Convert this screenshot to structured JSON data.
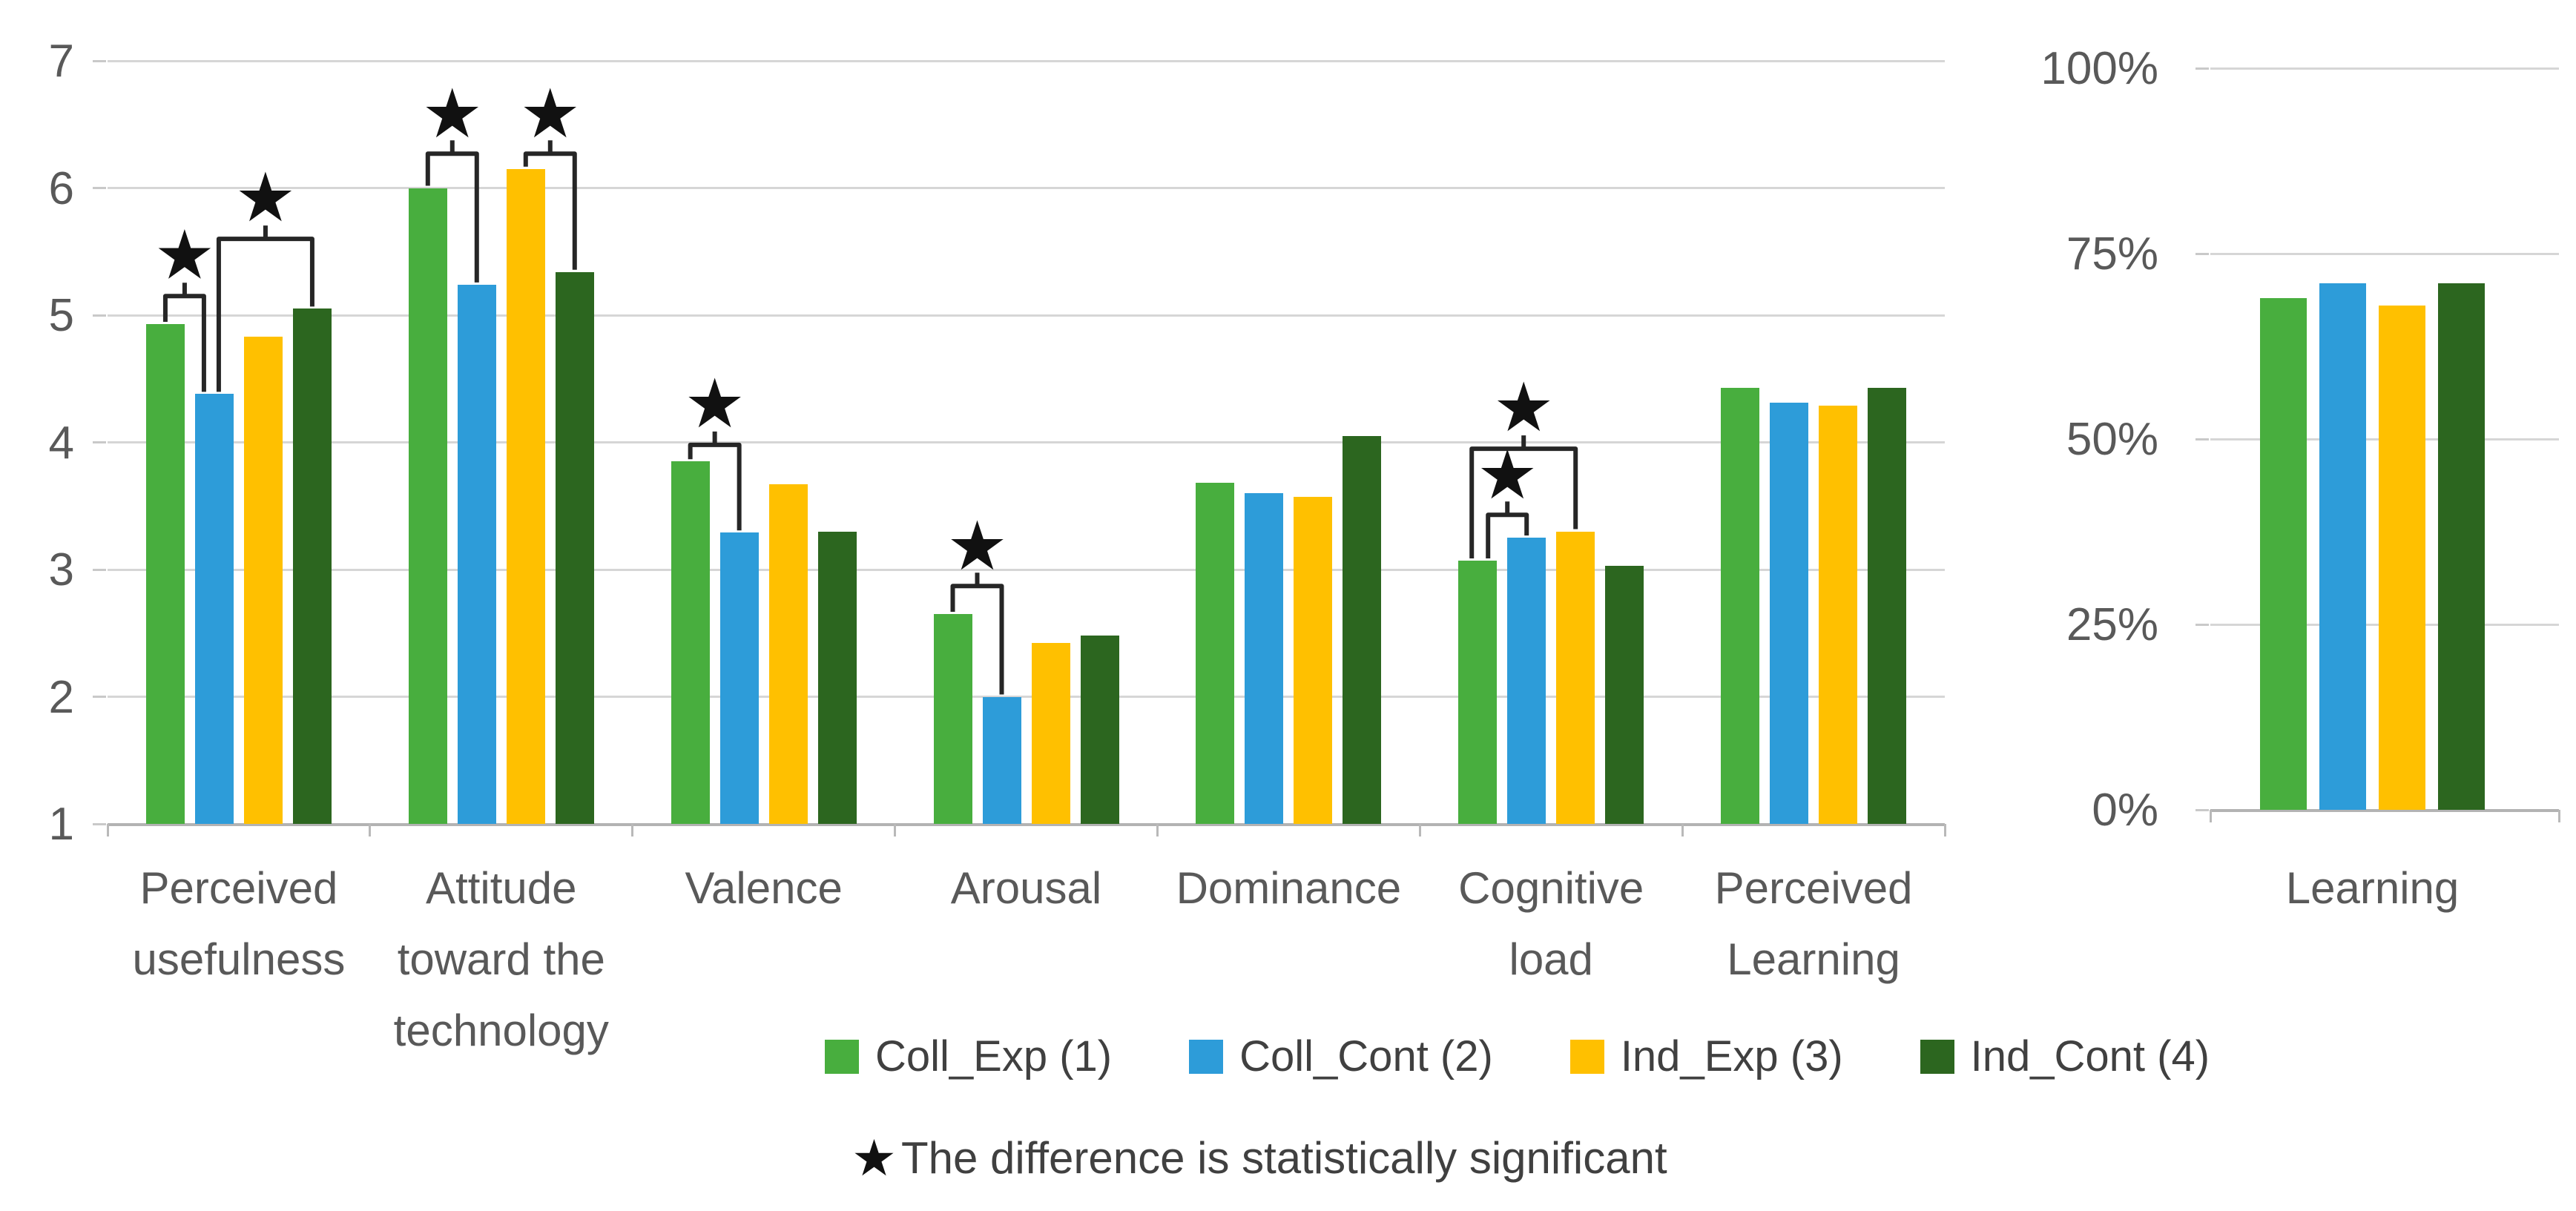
{
  "footnote": {
    "star": "★",
    "text": "The difference is statistically significant"
  },
  "legend": {
    "items": [
      {
        "label": "Coll_Exp (1)",
        "color": "#48ae3e"
      },
      {
        "label": "Coll_Cont (2)",
        "color": "#2d9cd9"
      },
      {
        "label": "Ind_Exp (3)",
        "color": "#ffc000"
      },
      {
        "label": "Ind_Cont (4)",
        "color": "#2c661f"
      }
    ]
  },
  "colors": {
    "gridline": "#d6d6d6",
    "axis": "#b3b3b3",
    "text": "#595959",
    "bracket": "#262626",
    "star": "#111111"
  },
  "chart_data": [
    {
      "type": "bar",
      "panel": "left",
      "title": "",
      "xlabel": "",
      "ylabel": "",
      "ylim": [
        1,
        7
      ],
      "yticks": [
        7,
        6,
        5,
        4,
        3,
        2,
        1
      ],
      "grid": true,
      "legend_position": "bottom",
      "categories": [
        "Perceived usefulness",
        "Attitude toward the technology",
        "Valence",
        "Arousal",
        "Dominance",
        "Cognitive load",
        "Perceived Learning"
      ],
      "category_lines": [
        [
          "Perceived",
          "usefulness"
        ],
        [
          "Attitude",
          "toward the",
          "technology"
        ],
        [
          "Valence"
        ],
        [
          "Arousal"
        ],
        [
          "Dominance"
        ],
        [
          "Cognitive",
          "load"
        ],
        [
          "Perceived",
          "Learning"
        ]
      ],
      "series": [
        {
          "name": "Coll_Exp (1)",
          "color": "#48ae3e",
          "values": [
            4.93,
            6.0,
            3.85,
            2.65,
            3.68,
            3.07,
            4.43
          ]
        },
        {
          "name": "Coll_Cont (2)",
          "color": "#2d9cd9",
          "values": [
            4.38,
            5.24,
            3.29,
            2.0,
            3.6,
            3.25,
            4.31
          ]
        },
        {
          "name": "Ind_Exp (3)",
          "color": "#ffc000",
          "values": [
            4.83,
            6.15,
            3.67,
            2.42,
            3.57,
            3.3,
            4.29
          ]
        },
        {
          "name": "Ind_Cont (4)",
          "color": "#2c661f",
          "values": [
            5.05,
            5.34,
            3.3,
            2.48,
            4.05,
            3.03,
            4.43
          ]
        }
      ],
      "significance_brackets": [
        {
          "group": 0,
          "between": [
            0,
            1
          ],
          "top": 5.15,
          "star_y": 5.47,
          "dx": [
            0,
            -14
          ]
        },
        {
          "group": 0,
          "between": [
            1,
            3
          ],
          "top": 5.6,
          "star_y": 5.92,
          "dx": [
            6,
            0
          ]
        },
        {
          "group": 1,
          "between": [
            0,
            1
          ],
          "top": 6.27,
          "star_y": 6.58,
          "dx": [
            0,
            0
          ]
        },
        {
          "group": 1,
          "between": [
            2,
            3
          ],
          "top": 6.27,
          "star_y": 6.58,
          "dx": [
            0,
            0
          ]
        },
        {
          "group": 2,
          "between": [
            0,
            1
          ],
          "top": 3.98,
          "star_y": 4.3,
          "dx": [
            0,
            0
          ]
        },
        {
          "group": 3,
          "between": [
            0,
            1
          ],
          "top": 2.87,
          "star_y": 3.18,
          "dx": [
            0,
            0
          ]
        },
        {
          "group": 5,
          "between": [
            0,
            1
          ],
          "top": 3.43,
          "star_y": 3.74,
          "dx": [
            14,
            0
          ]
        },
        {
          "group": 5,
          "between": [
            0,
            2
          ],
          "top": 3.95,
          "star_y": 4.27,
          "dx": [
            -8,
            0
          ]
        }
      ]
    },
    {
      "type": "bar",
      "panel": "right",
      "title": "",
      "xlabel": "",
      "ylabel": "",
      "ylim": [
        0,
        100
      ],
      "yticks": [
        100,
        75,
        50,
        25,
        0
      ],
      "ytick_labels": [
        "100%",
        "75%",
        "50%",
        "25%",
        "0%"
      ],
      "grid": true,
      "categories": [
        "Learning"
      ],
      "category_lines": [
        [
          "Learning"
        ]
      ],
      "series": [
        {
          "name": "Coll_Exp (1)",
          "color": "#48ae3e",
          "values": [
            69
          ]
        },
        {
          "name": "Coll_Cont (2)",
          "color": "#2d9cd9",
          "values": [
            71
          ]
        },
        {
          "name": "Ind_Exp (3)",
          "color": "#ffc000",
          "values": [
            68
          ]
        },
        {
          "name": "Ind_Cont (4)",
          "color": "#2c661f",
          "values": [
            71
          ]
        }
      ],
      "significance_brackets": []
    }
  ]
}
